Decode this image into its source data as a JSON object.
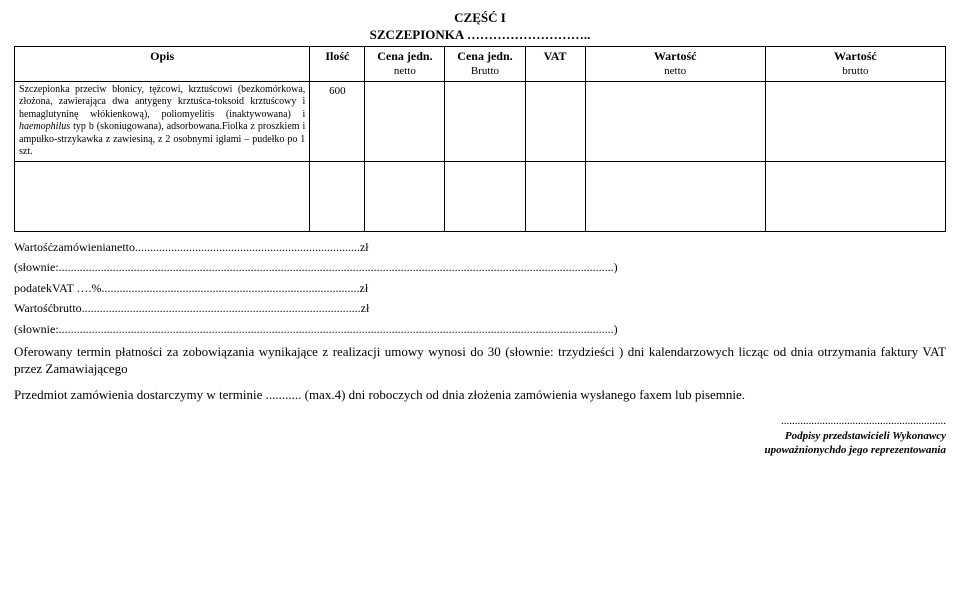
{
  "header": {
    "part": "CZĘŚĆ I",
    "vaccine_line": "SZCZEPIONKA ……………………….."
  },
  "table": {
    "columns": {
      "opis": "Opis",
      "ilosc": "Ilość",
      "cena_netto": "Cena jedn.",
      "cena_netto_sub": "netto",
      "cena_brutto": "Cena jedn.",
      "cena_brutto_sub": "Brutto",
      "vat": "VAT",
      "wartosc_netto": "Wartość",
      "wartosc_netto_sub": "netto",
      "wartosc_brutto": "Wartość",
      "wartosc_brutto_sub": "brutto"
    },
    "row": {
      "opis": "Szczepionka przeciw błonicy, tężcowi, krztuścowi (bezkomórkowa, złożona, zawierająca dwa antygeny krztuśca-toksoid krztuścowy i hemaglutyninę włókienkową), poliomyelitis (inaktywowana) i haemophilus typ b (skoniugowana), adsorbowana.Fiolka z proszkiem i ampułko-strzykawka z zawiesiną, z 2 osobnymi igłami – pudełko po 1 szt.",
      "ilosc": "600"
    }
  },
  "lines": {
    "l1": "Wartośćzamówienianetto...........................................................................zł",
    "l2": "(słownie:.........................................................................................................................................................................................)",
    "l3": "podatekVAT ….%......................................................................................zł",
    "l4": "Wartośćbrutto.............................................................................................zł",
    "l5": "(słownie:.........................................................................................................................................................................................)"
  },
  "paras": {
    "p1": "Oferowany termin płatności za zobowiązania wynikające z realizacji umowy  wynosi do 30 (słownie: trzydzieści ) dni kalendarzowych  licząc od dnia otrzymania faktury VAT przez Zamawiającego",
    "p2": "Przedmiot zamówienia dostarczymy w terminie ........... (max.4) dni roboczych od dnia złożenia zamówienia wysłanego faxem lub pisemnie."
  },
  "signature": {
    "dots": "............................................................",
    "line1": "Podpisy przedstawicieli Wykonawcy",
    "line2": "upoważnionychdo jego reprezentowania"
  }
}
